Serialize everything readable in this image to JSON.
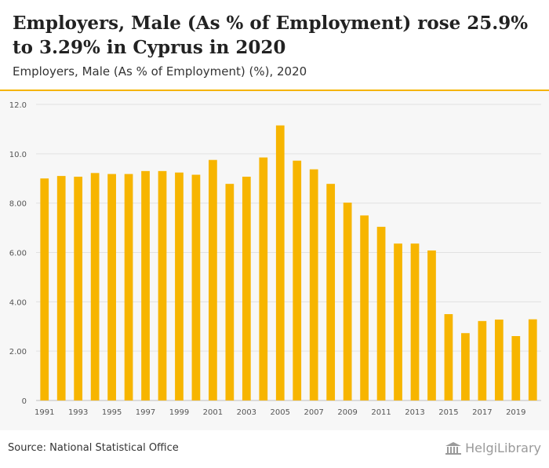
{
  "header": {
    "title": "Employers, Male (As % of Employment) rose 25.9% to 3.29% in Cyprus in 2020",
    "subtitle": "Employers, Male (As % of Employment) (%), 2020"
  },
  "footer": {
    "source": "Source: National Statistical Office",
    "logo_text": "HelgiLibrary"
  },
  "colors": {
    "bar": "#f7b500",
    "accent": "#f5b400",
    "grid": "#e2e2e2"
  },
  "chart_data": {
    "type": "bar",
    "title": "Employers, Male (As % of Employment) (%), 2020",
    "xlabel": "",
    "ylabel": "",
    "ylim": [
      0,
      12
    ],
    "yticks": [
      "0",
      "2.00",
      "4.00",
      "6.00",
      "8.00",
      "10.0",
      "12.0"
    ],
    "categories": [
      "1991",
      "1992",
      "1993",
      "1994",
      "1995",
      "1996",
      "1997",
      "1998",
      "1999",
      "2000",
      "2001",
      "2002",
      "2003",
      "2004",
      "2005",
      "2006",
      "2007",
      "2008",
      "2009",
      "2010",
      "2011",
      "2012",
      "2013",
      "2014",
      "2015",
      "2016",
      "2017",
      "2018",
      "2019",
      "2020"
    ],
    "xtick_labels": [
      "1991",
      "1993",
      "1995",
      "1997",
      "1999",
      "2001",
      "2003",
      "2005",
      "2007",
      "2009",
      "2011",
      "2013",
      "2015",
      "2017",
      "2019"
    ],
    "values": [
      9.0,
      9.1,
      9.07,
      9.22,
      9.18,
      9.18,
      9.3,
      9.3,
      9.24,
      9.15,
      9.75,
      8.78,
      9.07,
      9.85,
      11.15,
      9.72,
      9.37,
      8.78,
      8.02,
      7.5,
      7.04,
      6.36,
      6.36,
      6.08,
      3.5,
      2.73,
      3.22,
      3.28,
      2.61,
      3.29
    ]
  }
}
